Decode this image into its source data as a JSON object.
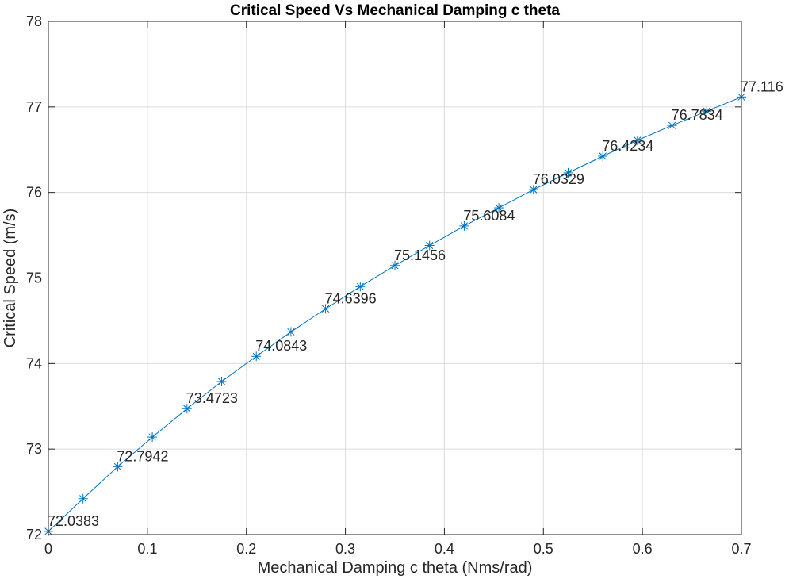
{
  "chart_data": {
    "type": "line",
    "title": "Critical Speed Vs Mechanical Damping c theta",
    "xlabel": "Mechanical Damping c theta (Nms/rad)",
    "ylabel": "Critical Speed (m/s)",
    "xlim": [
      0,
      0.7
    ],
    "ylim": [
      72,
      78
    ],
    "xticks": [
      0,
      0.1,
      0.2,
      0.3,
      0.4,
      0.5,
      0.6,
      0.7
    ],
    "xtick_labels": [
      "0",
      "0.1",
      "0.2",
      "0.3",
      "0.4",
      "0.5",
      "0.6",
      "0.7"
    ],
    "yticks": [
      72,
      73,
      74,
      75,
      76,
      77,
      78
    ],
    "ytick_labels": [
      "72",
      "73",
      "74",
      "75",
      "76",
      "77",
      "78"
    ],
    "grid": true,
    "marker": "asterisk",
    "color": "#0072BD",
    "series": [
      {
        "x": [
          0,
          0.035,
          0.07,
          0.105,
          0.14,
          0.175,
          0.21,
          0.245,
          0.28,
          0.315,
          0.35,
          0.385,
          0.42,
          0.455,
          0.49,
          0.525,
          0.56,
          0.595,
          0.63,
          0.665,
          0.7
        ],
        "y": [
          72.0383,
          72.42,
          72.7942,
          73.14,
          73.4723,
          73.79,
          74.0843,
          74.37,
          74.6396,
          74.9,
          75.1456,
          75.38,
          75.6084,
          75.82,
          76.0329,
          76.23,
          76.4234,
          76.61,
          76.7834,
          76.95,
          77.116
        ]
      }
    ],
    "annotations": [
      {
        "x": 0,
        "y": 72.0383,
        "text": "72.0383"
      },
      {
        "x": 0.07,
        "y": 72.7942,
        "text": "72.7942"
      },
      {
        "x": 0.14,
        "y": 73.4723,
        "text": "73.4723"
      },
      {
        "x": 0.21,
        "y": 74.0843,
        "text": "74.0843"
      },
      {
        "x": 0.28,
        "y": 74.6396,
        "text": "74.6396"
      },
      {
        "x": 0.35,
        "y": 75.1456,
        "text": "75.1456"
      },
      {
        "x": 0.42,
        "y": 75.6084,
        "text": "75.6084"
      },
      {
        "x": 0.49,
        "y": 76.0329,
        "text": "76.0329"
      },
      {
        "x": 0.56,
        "y": 76.4234,
        "text": "76.4234"
      },
      {
        "x": 0.63,
        "y": 76.7834,
        "text": "76.7834"
      },
      {
        "x": 0.7,
        "y": 77.116,
        "text": "77.116"
      }
    ]
  }
}
